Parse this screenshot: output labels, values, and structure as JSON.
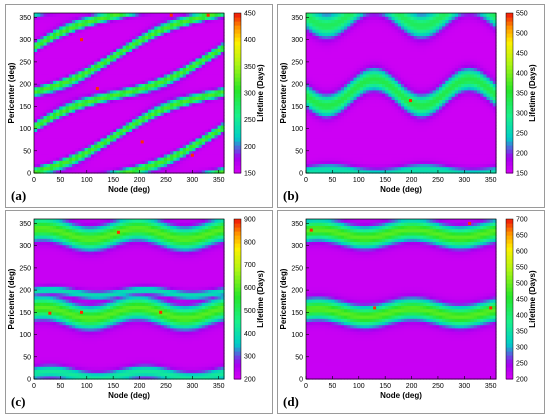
{
  "chart_data": [
    {
      "id": "a",
      "type": "heatmap",
      "panel_label": "(a)",
      "xlabel": "Node (deg)",
      "ylabel": "Pericenter (deg)",
      "colorbar_label": "Lifetime (Days)",
      "xlim": [
        0,
        360
      ],
      "ylim": [
        0,
        360
      ],
      "xticks": [
        0,
        50,
        100,
        150,
        200,
        250,
        300,
        350
      ],
      "yticks": [
        0,
        50,
        100,
        150,
        200,
        250,
        300,
        350
      ],
      "color_range": [
        150,
        450
      ],
      "colorbar_ticks": [
        150,
        200,
        250,
        300,
        350,
        400,
        450
      ],
      "pattern": "Diagonal band network of longer lifetimes separating oval regions of ~160 days; band values ~250-300 days with peaks up to ~450 days"
    },
    {
      "id": "b",
      "type": "heatmap",
      "panel_label": "(b)",
      "xlabel": "Node (deg)",
      "ylabel": "Pericenter (deg)",
      "colorbar_label": "Lifetime (Days)",
      "xlim": [
        0,
        360
      ],
      "ylim": [
        0,
        360
      ],
      "xticks": [
        0,
        50,
        100,
        150,
        200,
        250,
        300,
        350
      ],
      "yticks": [
        0,
        50,
        100,
        150,
        200,
        250,
        300,
        350
      ],
      "color_range": [
        150,
        550
      ],
      "colorbar_ticks": [
        150,
        200,
        250,
        300,
        350,
        400,
        450,
        500,
        550
      ],
      "pattern": "Bands of ~300 days near pericenter 0, 180 and 360 deg that dip down near node 50 and 230 deg; background ~150 days"
    },
    {
      "id": "c",
      "type": "heatmap",
      "panel_label": "(c)",
      "xlabel": "Node (deg)",
      "ylabel": "Pericenter (deg)",
      "colorbar_label": "Lifetime (Days)",
      "xlim": [
        0,
        360
      ],
      "ylim": [
        0,
        360
      ],
      "xticks": [
        0,
        50,
        100,
        150,
        200,
        250,
        300,
        350
      ],
      "yticks": [
        0,
        50,
        100,
        150,
        200,
        250,
        300,
        350
      ],
      "color_range": [
        200,
        900
      ],
      "colorbar_ticks": [
        200,
        300,
        400,
        500,
        600,
        700,
        800,
        900
      ],
      "pattern": "Wavy bands of ~500-650 days near pericenter 150 and 330 deg with lower ridges near 0 and 190 deg; background ~250 days"
    },
    {
      "id": "d",
      "type": "heatmap",
      "panel_label": "(d)",
      "xlabel": "Node (deg)",
      "ylabel": "Pericenter (deg)",
      "colorbar_label": "Lifetime (Days)",
      "xlim": [
        0,
        360
      ],
      "ylim": [
        0,
        360
      ],
      "xticks": [
        0,
        50,
        100,
        150,
        200,
        250,
        300,
        350
      ],
      "yticks": [
        0,
        50,
        100,
        150,
        200,
        250,
        300,
        350
      ],
      "color_range": [
        200,
        700
      ],
      "colorbar_ticks": [
        200,
        250,
        300,
        350,
        400,
        450,
        500,
        550,
        600,
        650,
        700
      ],
      "pattern": "Gently wavy bands of ~450-550 days near pericenter 150 and 330 deg; background ~230 days"
    }
  ]
}
